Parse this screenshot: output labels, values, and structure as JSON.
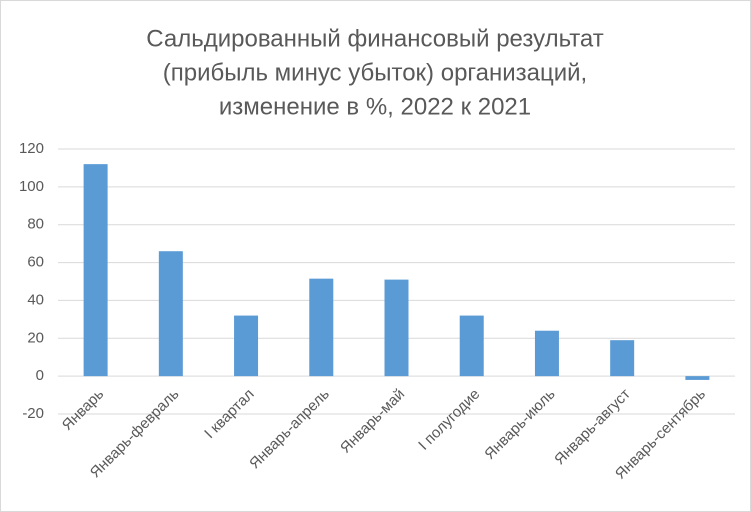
{
  "chart_data": {
    "type": "bar",
    "title": [
      "Сальдированный финансовый результат",
      "(прибыль минус убыток)  организаций,",
      "изменение в %, 2022 к 2021"
    ],
    "categories": [
      "Январь",
      "Январь-февраль",
      "I квартал",
      "Январь-апрель",
      "Январь-май",
      "I полугодие",
      "Январь-июль",
      "Январь-август",
      "Январь-сентябрь"
    ],
    "values": [
      112,
      66,
      32,
      51.5,
      51,
      32,
      24,
      19,
      -2
    ],
    "color": "#5b9bd5",
    "ylim": [
      -20,
      120
    ],
    "yticks": [
      -20,
      0,
      20,
      40,
      60,
      80,
      100,
      120
    ],
    "grid": true
  }
}
